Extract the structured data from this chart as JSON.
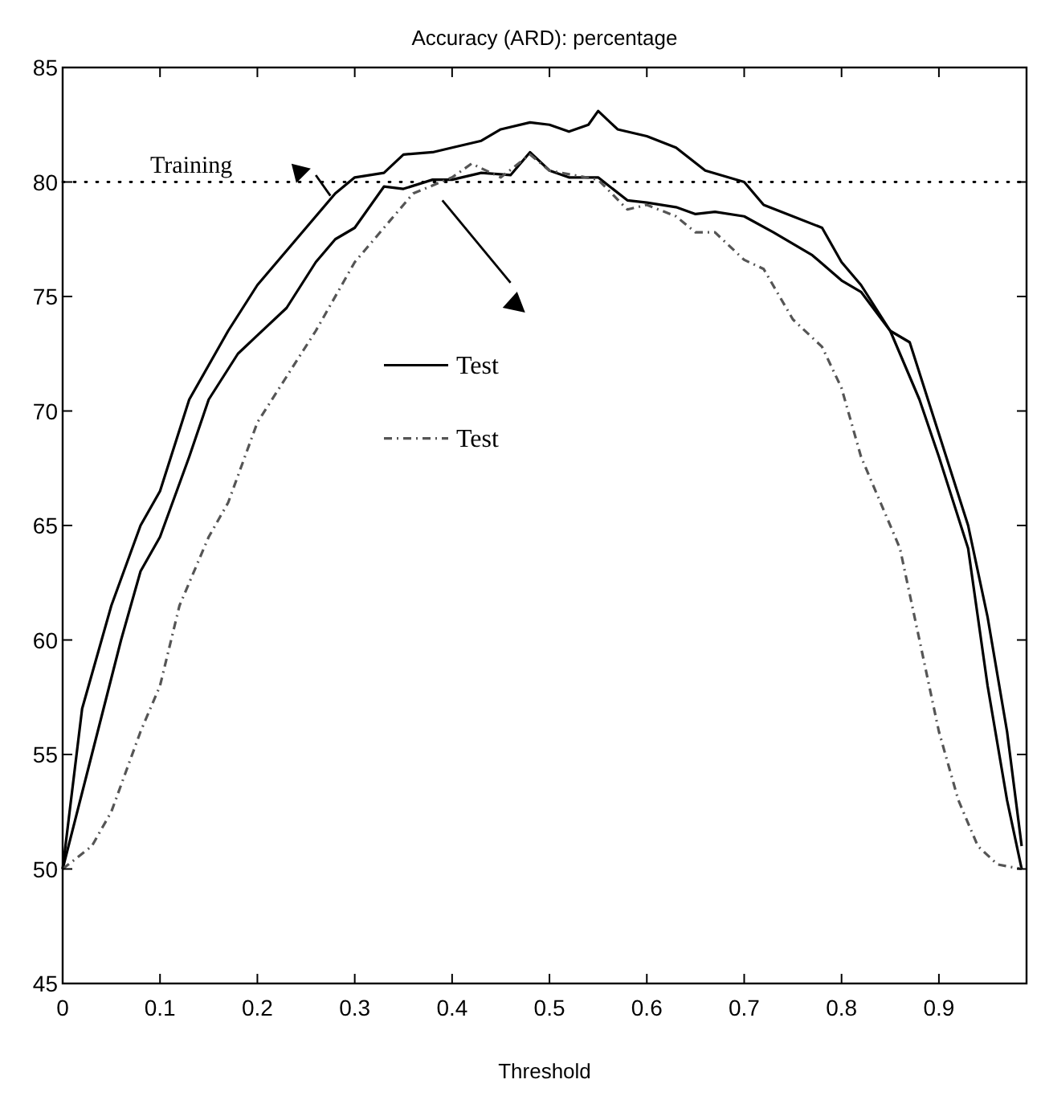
{
  "chart_data": {
    "type": "line",
    "title": "Accuracy (ARD): percentage",
    "xlabel": "Threshold",
    "xlim": [
      0,
      0.99
    ],
    "xticks": [
      0,
      0.1,
      0.2,
      0.3,
      0.4,
      0.5,
      0.6,
      0.7,
      0.8,
      0.9
    ],
    "ylim": [
      45,
      85
    ],
    "yticks": [
      45,
      50,
      55,
      60,
      65,
      70,
      75,
      80,
      85
    ],
    "grid": false,
    "legend": "center",
    "annotations": [
      "Training"
    ],
    "ref_lines": [
      {
        "axis": "y",
        "value": 80,
        "line_style": "dotted",
        "color": "#000000"
      }
    ],
    "series": [
      {
        "color": "#000000",
        "line_style": "solid",
        "x": [
          0,
          0.02,
          0.05,
          0.08,
          0.1,
          0.13,
          0.15,
          0.17,
          0.2,
          0.25,
          0.28,
          0.3,
          0.33,
          0.35,
          0.38,
          0.4,
          0.43,
          0.45,
          0.48,
          0.5,
          0.52,
          0.54,
          0.55,
          0.57,
          0.6,
          0.63,
          0.66,
          0.7,
          0.72,
          0.75,
          0.78,
          0.8,
          0.82,
          0.85,
          0.87,
          0.9,
          0.93,
          0.95,
          0.97,
          0.985
        ],
        "values": [
          50,
          57,
          61.5,
          65,
          66.5,
          70.5,
          72,
          73.5,
          75.5,
          78,
          79.5,
          80.2,
          80.4,
          81.2,
          81.3,
          81.5,
          81.8,
          82.3,
          82.6,
          82.5,
          82.2,
          82.5,
          83.1,
          82.3,
          82,
          81.5,
          80.5,
          80,
          79,
          78.5,
          78,
          76.5,
          75.5,
          73.5,
          73,
          69,
          65,
          61,
          56,
          51
        ]
      },
      {
        "name": "Test",
        "color": "#000000",
        "line_style": "solid",
        "x": [
          0,
          0.03,
          0.06,
          0.08,
          0.1,
          0.13,
          0.15,
          0.18,
          0.2,
          0.23,
          0.26,
          0.28,
          0.3,
          0.33,
          0.35,
          0.38,
          0.4,
          0.43,
          0.46,
          0.48,
          0.5,
          0.52,
          0.55,
          0.58,
          0.6,
          0.63,
          0.65,
          0.67,
          0.7,
          0.73,
          0.77,
          0.8,
          0.82,
          0.85,
          0.88,
          0.9,
          0.93,
          0.95,
          0.97,
          0.985
        ],
        "values": [
          50,
          55,
          60,
          63,
          64.5,
          68,
          70.5,
          72.5,
          73.3,
          74.5,
          76.5,
          77.5,
          78,
          79.8,
          79.7,
          80.1,
          80.1,
          80.4,
          80.3,
          81.3,
          80.5,
          80.2,
          80.2,
          79.2,
          79.1,
          78.9,
          78.6,
          78.7,
          78.5,
          77.8,
          76.8,
          75.7,
          75.2,
          73.5,
          70.5,
          68,
          64,
          58,
          53,
          50
        ]
      },
      {
        "name": "Test",
        "color": "#555555",
        "line_style": "dashed",
        "x": [
          0,
          0.03,
          0.05,
          0.08,
          0.1,
          0.12,
          0.15,
          0.17,
          0.2,
          0.23,
          0.26,
          0.3,
          0.33,
          0.36,
          0.4,
          0.42,
          0.45,
          0.48,
          0.5,
          0.55,
          0.58,
          0.6,
          0.63,
          0.65,
          0.67,
          0.7,
          0.72,
          0.75,
          0.78,
          0.8,
          0.82,
          0.84,
          0.86,
          0.88,
          0.9,
          0.92,
          0.94,
          0.96,
          0.985
        ],
        "values": [
          50,
          51,
          52.5,
          56,
          58,
          61.5,
          64.5,
          66,
          69.5,
          71.5,
          73.5,
          76.5,
          78,
          79.5,
          80.2,
          80.8,
          80.2,
          81.2,
          80.5,
          80.1,
          78.8,
          79,
          78.5,
          77.8,
          77.8,
          76.6,
          76.2,
          74,
          72.8,
          71,
          68,
          66,
          64,
          60,
          56,
          53,
          51,
          50.2,
          50
        ]
      }
    ]
  }
}
